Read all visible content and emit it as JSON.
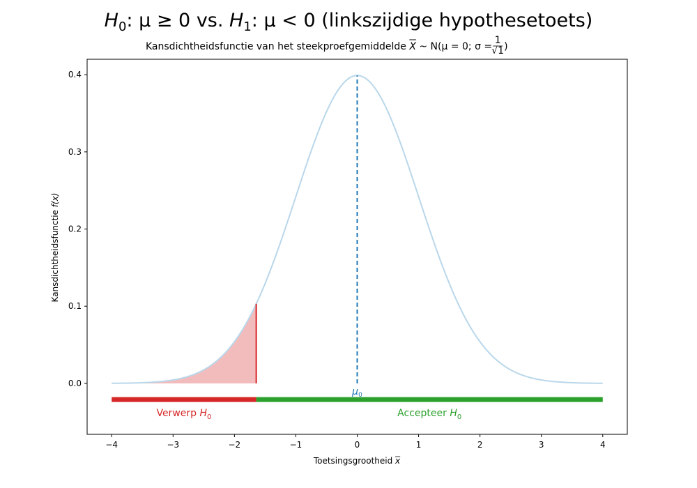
{
  "chart_data": {
    "type": "line",
    "title": {
      "h0_symbol": "H",
      "h0_sub": "0",
      "h0_condition": ": μ ≥ 0 vs. ",
      "h1_symbol": "H",
      "h1_sub": "1",
      "h1_condition": ": μ < 0 (linkszijdige hypothesetoets)"
    },
    "subtitle": {
      "prefix": "Kansdichtheidsfunctie van het steekproefgemiddelde ",
      "variable": "X",
      "distribution": " ~ N(μ = 0; σ = ",
      "fraction_numerator": "1",
      "fraction_denominator": "√1",
      "suffix": ")"
    },
    "xlabel": {
      "text": "Toetsingsgrootheid ",
      "symbol": "x"
    },
    "ylabel": {
      "text": "Kansdichtheidsfunctie ",
      "symbol": "f(x)"
    },
    "xlim": [
      -4.4,
      4.4
    ],
    "ylim": [
      -0.066,
      0.42
    ],
    "x_ticks": [
      -4,
      -3,
      -2,
      -1,
      0,
      1,
      2,
      3,
      4
    ],
    "x_tick_labels": [
      "−4",
      "−3",
      "−2",
      "−1",
      "0",
      "1",
      "2",
      "3",
      "4"
    ],
    "y_ticks": [
      0.0,
      0.1,
      0.2,
      0.3,
      0.4
    ],
    "y_tick_labels": [
      "0.0",
      "0.1",
      "0.2",
      "0.3",
      "0.4"
    ],
    "grid": false,
    "distribution": {
      "mean": 0,
      "sd": 1,
      "x_range": [
        -4,
        4
      ]
    },
    "critical_value": -1.645,
    "mu0": {
      "x": 0,
      "label": "μ",
      "label_sub": "0"
    },
    "regions": [
      {
        "name": "reject",
        "label": "Verwerp ",
        "symbol": "H",
        "sub": "0",
        "x_range": [
          -4,
          -1.645
        ],
        "y": -0.021
      },
      {
        "name": "accept",
        "label": "Accepteer ",
        "symbol": "H",
        "sub": "0",
        "x_range": [
          -1.645,
          4
        ],
        "y": -0.021
      }
    ],
    "colors": {
      "curve": "#b9d7ea",
      "mean_line": "#1f77b4",
      "reject": "#d62728",
      "accept": "#2ca02c",
      "reject_fill": "#f2bcbd"
    }
  }
}
